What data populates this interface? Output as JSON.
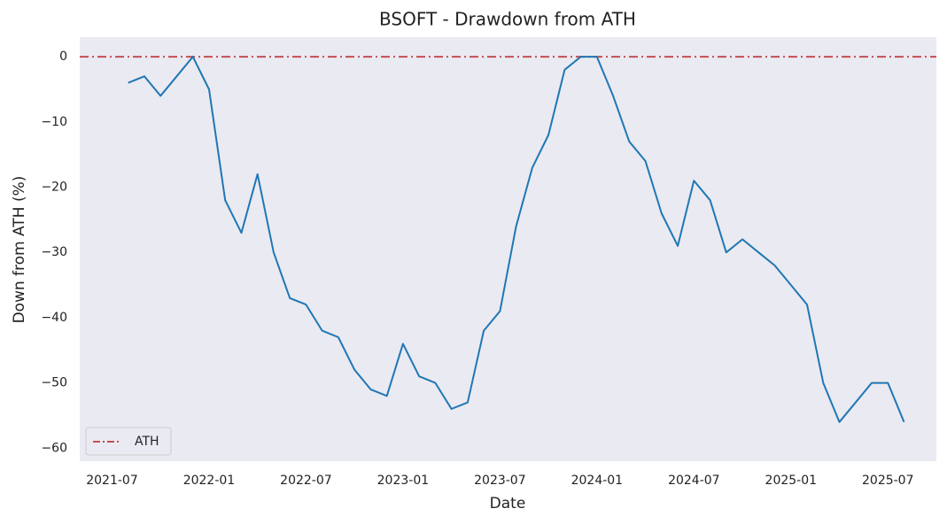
{
  "chart_data": {
    "type": "line",
    "title": "BSOFT - Drawdown from ATH",
    "xlabel": "Date",
    "ylabel": "Down from ATH (%)",
    "x": [
      "2021-08",
      "2021-09",
      "2021-10",
      "2021-11",
      "2021-12",
      "2022-01",
      "2022-02",
      "2022-03",
      "2022-04",
      "2022-05",
      "2022-06",
      "2022-07",
      "2022-08",
      "2022-09",
      "2022-10",
      "2022-11",
      "2022-12",
      "2023-01",
      "2023-02",
      "2023-03",
      "2023-04",
      "2023-05",
      "2023-06",
      "2023-07",
      "2023-08",
      "2023-09",
      "2023-10",
      "2023-11",
      "2023-12",
      "2024-01",
      "2024-02",
      "2024-03",
      "2024-04",
      "2024-05",
      "2024-06",
      "2024-07",
      "2024-08",
      "2024-09",
      "2024-10",
      "2024-11",
      "2024-12",
      "2025-01",
      "2025-02",
      "2025-03",
      "2025-04",
      "2025-05",
      "2025-06",
      "2025-07",
      "2025-08"
    ],
    "series": [
      {
        "color": "#1f77b4",
        "values": [
          -4,
          -3,
          -6,
          -3,
          0,
          -5,
          -22,
          -27,
          -18,
          -30,
          -37,
          -38,
          -42,
          -43,
          -48,
          -51,
          -52,
          -44,
          -49,
          -50,
          -54,
          -53,
          -42,
          -39,
          -26,
          -17,
          -12,
          -2,
          0,
          0,
          -6,
          -13,
          -16,
          -24,
          -29,
          -19,
          -22,
          -30,
          -28,
          -30,
          -32,
          -35,
          -38,
          -50,
          -56,
          -53,
          -50,
          -50,
          -56
        ]
      }
    ],
    "reference_line": {
      "name": "ATH",
      "value": 0,
      "color": "#c44e52"
    },
    "xlim": [
      "2021-05",
      "2025-10"
    ],
    "xticks": [
      "2021-07",
      "2022-01",
      "2022-07",
      "2023-01",
      "2023-07",
      "2024-01",
      "2024-07",
      "2025-01",
      "2025-07"
    ],
    "ylim": [
      -62,
      3
    ],
    "yticks": [
      {
        "value": -60,
        "label": "−60"
      },
      {
        "value": -50,
        "label": "−50"
      },
      {
        "value": -40,
        "label": "−40"
      },
      {
        "value": -30,
        "label": "−30"
      },
      {
        "value": -20,
        "label": "−20"
      },
      {
        "value": -10,
        "label": "−10"
      },
      0
    ],
    "grid": false,
    "legend": "lower left"
  }
}
